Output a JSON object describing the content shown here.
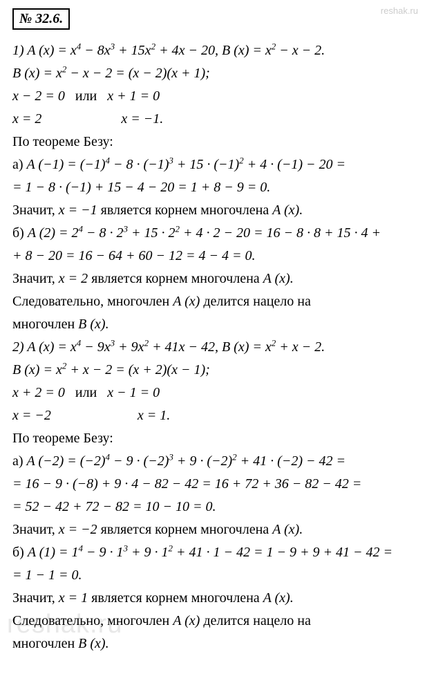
{
  "problem_number": "№ 32.6.",
  "watermark_top": "reshak.ru",
  "watermark_bottom": "reshak.ru",
  "lines": {
    "l1": "1) A (x) = x⁴ − 8x³ + 15x² + 4x − 20, B (x) = x² − x − 2.",
    "l2": "B (x) = x² − x − 2 = (x − 2)(x + 1);",
    "l3a": "x − 2 = 0",
    "l3or": "или",
    "l3b": "x + 1 = 0",
    "l4a": "x = 2",
    "l4b": "x = −1.",
    "l5": "По теореме Безу:",
    "l6": "а) A (−1) = (−1)⁴ − 8 · (−1)³ + 15 · (−1)² + 4 · (−1) − 20 =",
    "l7": "= 1 − 8 · (−1) + 15 − 4 − 20 = 1 + 8 − 9 = 0.",
    "l8a": "Значит, ",
    "l8b": "x = −1",
    "l8c": " является корнем многочлена ",
    "l8d": "A (x).",
    "l9": "б) A (2) = 2⁴ − 8 · 2³ + 15 · 2² + 4 · 2 − 20 = 16 − 8 · 8 + 15 · 4 +",
    "l10": "+ 8 − 20 = 16 − 64 + 60 − 12 = 4 − 4 = 0.",
    "l11a": "Значит, ",
    "l11b": "x = 2",
    "l11c": " является корнем многочлена ",
    "l11d": "A (x).",
    "l12a": "Следовательно, многочлен ",
    "l12b": "A (x)",
    "l12c": " делится нацело на",
    "l13a": "многочлен ",
    "l13b": "B (x).",
    "l14": "2) A (x) = x⁴ − 9x³ + 9x² + 41x − 42, B (x) = x² + x − 2.",
    "l15": "B (x) = x² + x − 2 = (x + 2)(x − 1);",
    "l16a": "x + 2 = 0",
    "l16or": "или",
    "l16b": "x − 1 = 0",
    "l17a": "x = −2",
    "l17b": "x = 1.",
    "l18": "По теореме Безу:",
    "l19": "а) A (−2) = (−2)⁴ − 9 · (−2)³ + 9 · (−2)² + 41 · (−2) − 42 =",
    "l20": "= 16 − 9 · (−8) + 9 · 4 − 82 − 42 = 16 + 72 + 36 − 82 − 42 =",
    "l21": "= 52 − 42 + 72 − 82 = 10 − 10 = 0.",
    "l22a": "Значит, ",
    "l22b": "x = −2",
    "l22c": " является корнем многочлена ",
    "l22d": "A (x).",
    "l23": "б) A (1) = 1⁴ − 9 · 1³ + 9 · 1² + 41 · 1 − 42 = 1 − 9 + 9 + 41 − 42 =",
    "l24": "= 1 − 1 = 0.",
    "l25a": "Значит, ",
    "l25b": "x = 1",
    "l25c": " является корнем многочлена ",
    "l25d": "A (x).",
    "l26a": "Следовательно, многочлен ",
    "l26b": "A (x)",
    "l26c": " делится нацело на",
    "l27a": "многочлен ",
    "l27b": "B (x)."
  }
}
